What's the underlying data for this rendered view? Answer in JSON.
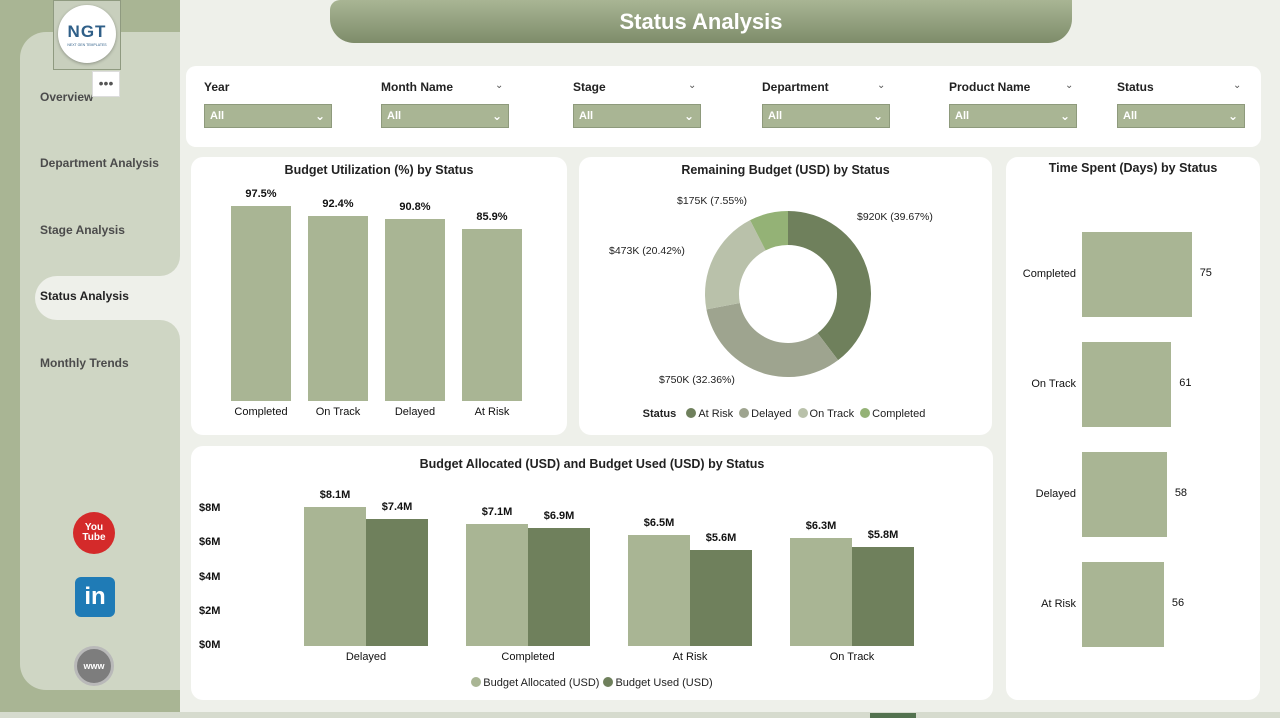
{
  "header": {
    "title": "Status Analysis"
  },
  "logo": {
    "text": "NGT",
    "subtext": "NEXT GEN TEMPLATES"
  },
  "more_menu": "•••",
  "nav": {
    "items": [
      {
        "label": "Overview"
      },
      {
        "label": "Department Analysis"
      },
      {
        "label": "Stage Analysis"
      },
      {
        "label": "Status Analysis",
        "active": true
      },
      {
        "label": "Monthly Trends"
      }
    ]
  },
  "social": {
    "youtube": "You Tube",
    "linkedin": "in",
    "website": "www"
  },
  "filters": [
    {
      "label": "Year",
      "value": "All"
    },
    {
      "label": "Month Name",
      "value": "All"
    },
    {
      "label": "Stage",
      "value": "All"
    },
    {
      "label": "Department",
      "value": "All"
    },
    {
      "label": "Product Name",
      "value": "All"
    },
    {
      "label": "Status",
      "value": "All"
    }
  ],
  "charts": {
    "utilization": {
      "title": "Budget Utilization (%) by Status"
    },
    "remaining": {
      "title": "Remaining Budget (USD) by Status",
      "legend_title": "Status"
    },
    "time": {
      "title": "Time Spent (Days) by Status"
    },
    "allocated": {
      "title": "Budget Allocated (USD) and Budget Used (USD) by Status"
    }
  },
  "chart_data": [
    {
      "id": "utilization",
      "type": "bar",
      "title": "Budget Utilization (%) by Status",
      "categories": [
        "Completed",
        "On Track",
        "Delayed",
        "At Risk"
      ],
      "values": [
        97.5,
        92.4,
        90.8,
        85.9
      ],
      "data_labels": [
        "97.5%",
        "92.4%",
        "90.8%",
        "85.9%"
      ],
      "ylim": [
        0,
        100
      ],
      "color": "#a9b594"
    },
    {
      "id": "remaining",
      "type": "pie",
      "title": "Remaining Budget (USD) by Status",
      "categories": [
        "At Risk",
        "Delayed",
        "On Track",
        "Completed"
      ],
      "values": [
        920,
        750,
        473,
        175
      ],
      "data_labels": [
        "$920K (39.67%)",
        "$750K (32.36%)",
        "$473K (20.42%)",
        "$175K (7.55%)"
      ],
      "colors": [
        "#6f805c",
        "#9ea48f",
        "#b9c1aa",
        "#94b276"
      ],
      "legend": "bottom"
    },
    {
      "id": "time",
      "type": "bar",
      "orientation": "horizontal",
      "title": "Time Spent (Days) by Status",
      "categories": [
        "Completed",
        "On Track",
        "Delayed",
        "At Risk"
      ],
      "values": [
        75,
        61,
        58,
        56
      ],
      "xlim": [
        0,
        80
      ],
      "color": "#a9b594"
    },
    {
      "id": "allocated",
      "type": "bar",
      "title": "Budget Allocated (USD) and Budget Used (USD) by Status",
      "categories": [
        "Delayed",
        "Completed",
        "At Risk",
        "On Track"
      ],
      "series": [
        {
          "name": "Budget Allocated (USD)",
          "values": [
            8.1,
            7.1,
            6.5,
            6.3
          ],
          "labels": [
            "$8.1M",
            "$7.1M",
            "$6.5M",
            "$6.3M"
          ],
          "color": "#a9b594"
        },
        {
          "name": "Budget Used (USD)",
          "values": [
            7.4,
            6.9,
            5.6,
            5.8
          ],
          "labels": [
            "$7.4M",
            "$6.9M",
            "$5.6M",
            "$5.8M"
          ],
          "color": "#6f805c"
        }
      ],
      "y_ticks": [
        "$0M",
        "$2M",
        "$4M",
        "$6M",
        "$8M"
      ],
      "ylim": [
        0,
        8
      ],
      "legend": "bottom"
    }
  ]
}
